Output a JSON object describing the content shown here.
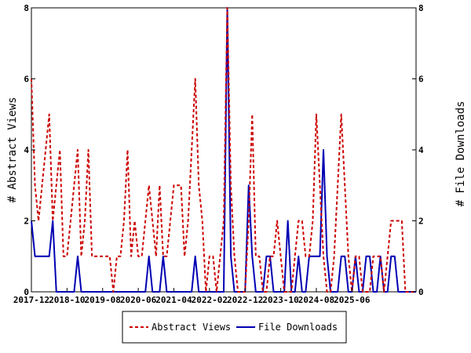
{
  "chart_data": {
    "type": "line",
    "title": "",
    "ylabel_left": "# Abstract Views",
    "ylabel_right": "# File Downloads",
    "ylim": [
      0,
      8
    ],
    "yticks": [
      0,
      2,
      4,
      6,
      8
    ],
    "x_tick_labels": [
      "2017-12",
      "2018-10",
      "2019-08",
      "2020-06",
      "2021-04",
      "2022-02",
      "2022-12",
      "2023-10",
      "2024-08",
      "2025-06"
    ],
    "x_start_label": "2017-12",
    "x_step_months": 1,
    "x_tick_step_months": 10,
    "grid": false,
    "legend_position": "bottom",
    "series": [
      {
        "name": "Abstract Views",
        "color": "#cc0000",
        "dash": "dashed",
        "values": [
          6,
          3,
          2,
          3,
          4,
          5,
          2,
          3,
          4,
          1,
          1,
          2,
          3,
          4,
          1,
          2,
          4,
          1,
          1,
          1,
          1,
          1,
          1,
          0,
          1,
          1,
          2,
          4,
          1,
          2,
          1,
          1,
          2,
          3,
          2,
          1,
          3,
          1,
          1,
          2,
          3,
          3,
          3,
          1,
          2,
          4,
          6,
          3,
          2,
          0,
          1,
          1,
          0,
          1,
          2,
          8,
          3,
          1,
          0,
          0,
          0,
          2,
          5,
          1,
          1,
          0,
          0,
          1,
          1,
          2,
          1,
          0,
          0,
          0,
          1,
          2,
          2,
          1,
          1,
          2,
          5,
          3,
          1,
          0,
          0,
          1,
          3,
          5,
          3,
          1,
          0,
          1,
          1,
          0,
          0,
          0,
          1,
          1,
          1,
          0,
          1,
          2,
          2,
          2,
          2,
          0,
          0,
          0,
          0
        ]
      },
      {
        "name": "File Downloads",
        "color": "#0000b3",
        "dash": "solid",
        "values": [
          2,
          1,
          1,
          1,
          1,
          1,
          2,
          0,
          0,
          0,
          0,
          0,
          0,
          1,
          0,
          0,
          0,
          0,
          0,
          0,
          0,
          0,
          0,
          0,
          0,
          0,
          0,
          0,
          0,
          0,
          0,
          0,
          0,
          1,
          0,
          0,
          0,
          1,
          0,
          0,
          0,
          0,
          0,
          0,
          0,
          0,
          1,
          0,
          0,
          0,
          0,
          0,
          0,
          0,
          0,
          8,
          1,
          0,
          0,
          0,
          0,
          3,
          1,
          0,
          0,
          0,
          1,
          1,
          0,
          0,
          0,
          0,
          2,
          0,
          0,
          1,
          0,
          0,
          1,
          1,
          1,
          1,
          4,
          1,
          0,
          0,
          0,
          1,
          1,
          0,
          0,
          1,
          0,
          0,
          1,
          1,
          0,
          0,
          1,
          0,
          0,
          1,
          1,
          0,
          0,
          0,
          0,
          0,
          0
        ]
      }
    ]
  }
}
